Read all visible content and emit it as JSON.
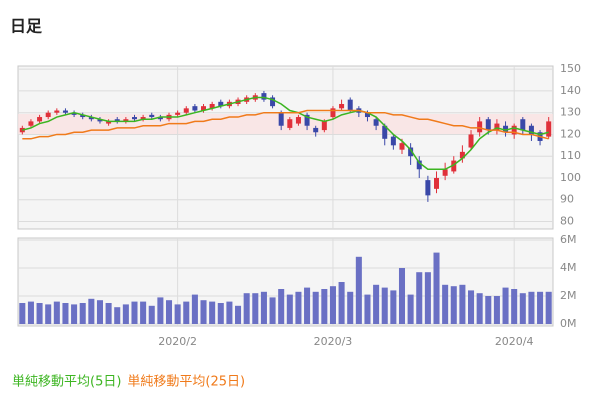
{
  "chart_data": [
    {
      "type": "candlestick",
      "title": "日足",
      "open": [
        121,
        124,
        126,
        128,
        130,
        131,
        130,
        129,
        128,
        127,
        125,
        127,
        126,
        128,
        127,
        129,
        128,
        127,
        129,
        130,
        133,
        131,
        132,
        135,
        133,
        134,
        135,
        136,
        139,
        137,
        130,
        123,
        125,
        129,
        123,
        122,
        128,
        132,
        136,
        132,
        130,
        127,
        124,
        119,
        113,
        114,
        108,
        99,
        95,
        101,
        103,
        109,
        114,
        121,
        127,
        122,
        124,
        120,
        127,
        124,
        121,
        119
      ],
      "high": [
        124,
        127,
        129,
        131,
        132,
        132,
        131,
        130,
        129,
        128,
        127,
        128,
        128,
        129,
        129,
        130,
        129,
        130,
        131,
        133,
        134,
        134,
        135,
        136,
        136,
        137,
        138,
        139,
        140,
        138,
        131,
        128,
        129,
        130,
        124,
        127,
        133,
        136,
        137,
        133,
        131,
        128,
        125,
        120,
        118,
        116,
        110,
        101,
        103,
        107,
        110,
        115,
        122,
        128,
        128,
        127,
        126,
        125,
        128,
        125,
        122,
        128
      ],
      "low": [
        120,
        123,
        125,
        127,
        129,
        129,
        128,
        127,
        126,
        125,
        124,
        125,
        125,
        126,
        126,
        127,
        126,
        126,
        128,
        129,
        130,
        130,
        131,
        132,
        132,
        133,
        134,
        135,
        135,
        132,
        122,
        122,
        124,
        122,
        119,
        121,
        127,
        131,
        130,
        128,
        126,
        122,
        115,
        113,
        111,
        106,
        100,
        89,
        93,
        99,
        102,
        107,
        113,
        119,
        120,
        120,
        119,
        118,
        120,
        117,
        115,
        118
      ],
      "close": [
        123,
        126,
        128,
        130,
        131,
        130,
        129,
        128,
        127,
        126,
        126,
        126,
        127,
        127,
        128,
        128,
        127,
        129,
        130,
        132,
        131,
        133,
        134,
        133,
        135,
        136,
        137,
        138,
        136,
        133,
        124,
        127,
        128,
        124,
        121,
        126,
        132,
        134,
        131,
        130,
        128,
        124,
        118,
        115,
        116,
        110,
        104,
        92,
        100,
        104,
        108,
        112,
        120,
        126,
        122,
        125,
        121,
        124,
        122,
        120,
        117,
        126
      ],
      "up_color": "#e0303a",
      "down_color": "#3a48a8",
      "series": [
        {
          "name": "単純移動平均(5日)",
          "color": "#3cb521",
          "values": [
            122,
            123,
            125,
            126,
            128,
            129,
            130,
            129,
            128,
            127,
            126,
            126,
            126,
            126,
            127,
            127,
            128,
            128,
            128,
            129,
            130,
            131,
            132,
            133,
            134,
            135,
            136,
            137,
            137,
            136,
            134,
            131,
            130,
            128,
            127,
            126,
            127,
            129,
            130,
            131,
            130,
            128,
            124,
            120,
            117,
            113,
            107,
            104,
            104,
            104,
            106,
            109,
            113,
            118,
            121,
            123,
            122,
            123,
            122,
            121,
            120,
            121
          ]
        },
        {
          "name": "単純移動平均(25日)",
          "color": "#f07a1a",
          "values": [
            118,
            118,
            119,
            119,
            120,
            120,
            121,
            121,
            122,
            122,
            122,
            123,
            123,
            123,
            124,
            124,
            124,
            125,
            125,
            125,
            126,
            126,
            127,
            127,
            128,
            128,
            129,
            129,
            130,
            130,
            130,
            130,
            130,
            131,
            131,
            131,
            131,
            131,
            131,
            131,
            130,
            130,
            130,
            129,
            129,
            128,
            127,
            127,
            126,
            125,
            124,
            124,
            123,
            123,
            122,
            122,
            121,
            121,
            120,
            120,
            119,
            118
          ]
        }
      ],
      "ylim": [
        77,
        151
      ],
      "yticks": [
        80,
        90,
        100,
        110,
        120,
        130,
        140,
        150
      ],
      "grid": true
    },
    {
      "type": "bar",
      "categories": [
        null,
        null,
        null,
        null,
        null,
        null,
        null,
        null,
        null,
        null,
        null,
        null,
        null,
        null,
        null,
        null,
        null,
        null,
        "2020/2",
        null,
        null,
        null,
        null,
        null,
        null,
        null,
        null,
        null,
        null,
        null,
        null,
        null,
        null,
        null,
        null,
        null,
        "2020/3",
        null,
        null,
        null,
        null,
        null,
        null,
        null,
        null,
        null,
        null,
        null,
        null,
        null,
        null,
        null,
        null,
        null,
        null,
        null,
        null,
        "2020/4",
        null,
        null,
        null,
        null
      ],
      "values": [
        1500000,
        1600000,
        1500000,
        1400000,
        1600000,
        1500000,
        1400000,
        1500000,
        1800000,
        1700000,
        1500000,
        1200000,
        1400000,
        1600000,
        1600000,
        1300000,
        1900000,
        1700000,
        1400000,
        1600000,
        2100000,
        1700000,
        1600000,
        1500000,
        1600000,
        1300000,
        2200000,
        2200000,
        2300000,
        1900000,
        2500000,
        2100000,
        2300000,
        2600000,
        2300000,
        2500000,
        2700000,
        3000000,
        2300000,
        4800000,
        2100000,
        2800000,
        2600000,
        2400000,
        4000000,
        2100000,
        3700000,
        3700000,
        5100000,
        2800000,
        2700000,
        2800000,
        2400000,
        2200000,
        2000000,
        2000000,
        2600000,
        2500000,
        2200000,
        2300000,
        2300000,
        2300000
      ],
      "color": "#6a70c4",
      "ylim": [
        0,
        6000000
      ],
      "yticks": [
        {
          "value": 0,
          "label": "0M"
        },
        {
          "value": 2000000,
          "label": "2M"
        },
        {
          "value": 4000000,
          "label": "4M"
        },
        {
          "value": 6000000,
          "label": "6M"
        }
      ],
      "grid": true
    }
  ]
}
